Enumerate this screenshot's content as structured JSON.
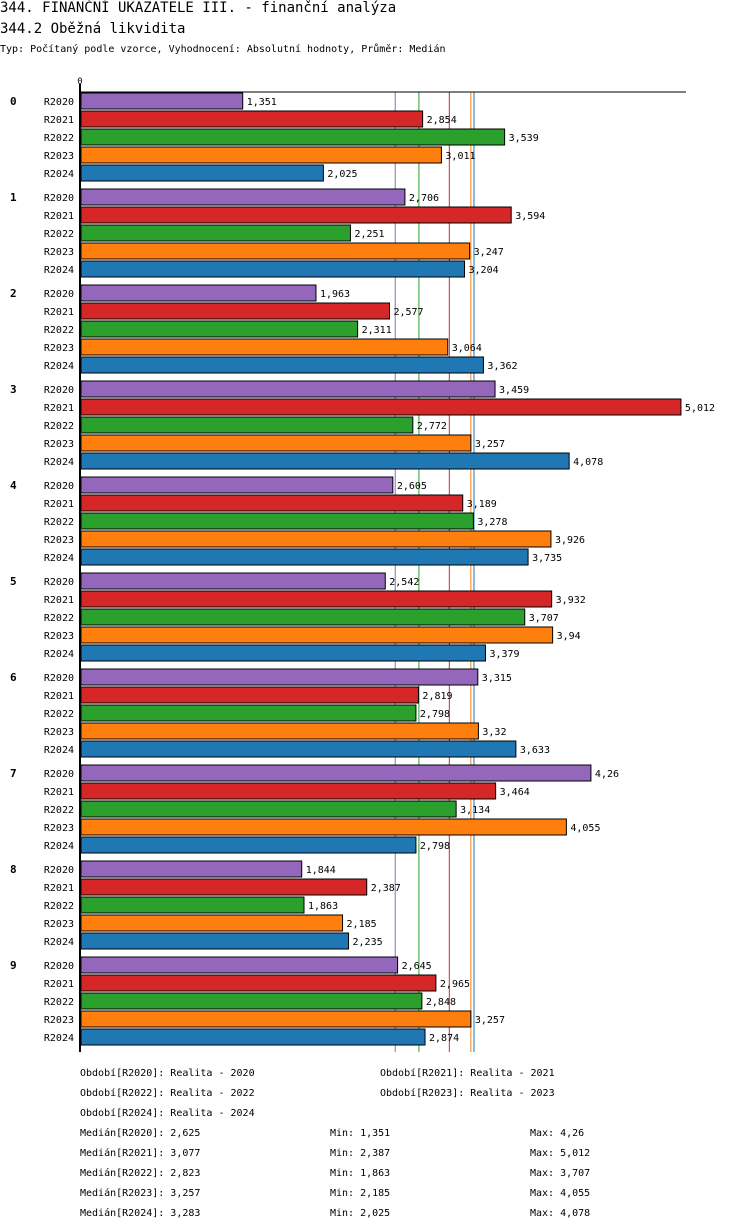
{
  "header": {
    "title": "344. FINANČNÍ UKAZATELE III. - finanční analýza",
    "subtitle": "344.2 Oběžná likvidita",
    "info": "Typ: Počítaný podle vzorce, Vyhodnocení: Absolutní hodnoty, Průměr: Medián"
  },
  "chart_data": {
    "type": "bar",
    "orientation": "horizontal",
    "title": "344.2 Oběžná likvidita",
    "xlabel": "",
    "ylabel": "",
    "xlim": [
      0,
      5.012
    ],
    "x_tick_labels": [
      "0"
    ],
    "grid": false,
    "categories": [
      "0",
      "1",
      "2",
      "3",
      "4",
      "5",
      "6",
      "7",
      "8",
      "9"
    ],
    "series": [
      {
        "name": "R2020",
        "color": "#9467bd",
        "values": [
          1.351,
          2.706,
          1.963,
          3.459,
          2.605,
          2.542,
          3.315,
          4.26,
          1.844,
          2.645
        ],
        "labels": [
          "1,351",
          "2,706",
          "1,963",
          "3,459",
          "2,605",
          "2,542",
          "3,315",
          "4,26",
          "1,844",
          "2,645"
        ],
        "median": 2.625
      },
      {
        "name": "R2021",
        "color": "#d62728",
        "values": [
          2.854,
          3.594,
          2.577,
          5.012,
          3.189,
          3.932,
          2.819,
          3.464,
          2.387,
          2.965
        ],
        "labels": [
          "2,854",
          "3,594",
          "2,577",
          "5,012",
          "3,189",
          "3,932",
          "2,819",
          "3,464",
          "2,387",
          "2,965"
        ],
        "median": 3.077
      },
      {
        "name": "R2022",
        "color": "#2ca02c",
        "values": [
          3.539,
          2.251,
          2.311,
          2.772,
          3.278,
          3.707,
          2.798,
          3.134,
          1.863,
          2.848
        ],
        "labels": [
          "3,539",
          "2,251",
          "2,311",
          "2,772",
          "3,278",
          "3,707",
          "2,798",
          "3,134",
          "1,863",
          "2,848"
        ],
        "median": 2.823
      },
      {
        "name": "R2023",
        "color": "#ff7f0e",
        "values": [
          3.011,
          3.247,
          3.064,
          3.257,
          3.926,
          3.94,
          3.32,
          4.055,
          2.185,
          3.257
        ],
        "labels": [
          "3,011",
          "3,247",
          "3,064",
          "3,257",
          "3,926",
          "3,94",
          "3,32",
          "4,055",
          "2,185",
          "3,257"
        ],
        "median": 3.257
      },
      {
        "name": "R2024",
        "color": "#1f77b4",
        "values": [
          2.025,
          3.204,
          3.362,
          4.078,
          3.735,
          3.379,
          3.633,
          2.798,
          2.235,
          2.874
        ],
        "labels": [
          "2,025",
          "3,204",
          "3,362",
          "4,078",
          "3,735",
          "3,379",
          "3,633",
          "2,798",
          "2,235",
          "2,874"
        ],
        "median": 3.283
      }
    ],
    "median_lines": true
  },
  "legend": {
    "periods": [
      "Období[R2020]: Realita - 2020",
      "Období[R2021]: Realita - 2021",
      "Období[R2022]: Realita - 2022",
      "Období[R2023]: Realita - 2023",
      "Období[R2024]: Realita - 2024"
    ],
    "stats": [
      {
        "median": "Medián[R2020]: 2,625",
        "min": "Min: 1,351",
        "max": "Max: 4,26"
      },
      {
        "median": "Medián[R2021]: 3,077",
        "min": "Min: 2,387",
        "max": "Max: 5,012"
      },
      {
        "median": "Medián[R2022]: 2,823",
        "min": "Min: 1,863",
        "max": "Max: 3,707"
      },
      {
        "median": "Medián[R2023]: 3,257",
        "min": "Min: 2,185",
        "max": "Max: 4,055"
      },
      {
        "median": "Medián[R2024]: 3,283",
        "min": "Min: 2,025",
        "max": "Max: 4,078"
      }
    ]
  }
}
